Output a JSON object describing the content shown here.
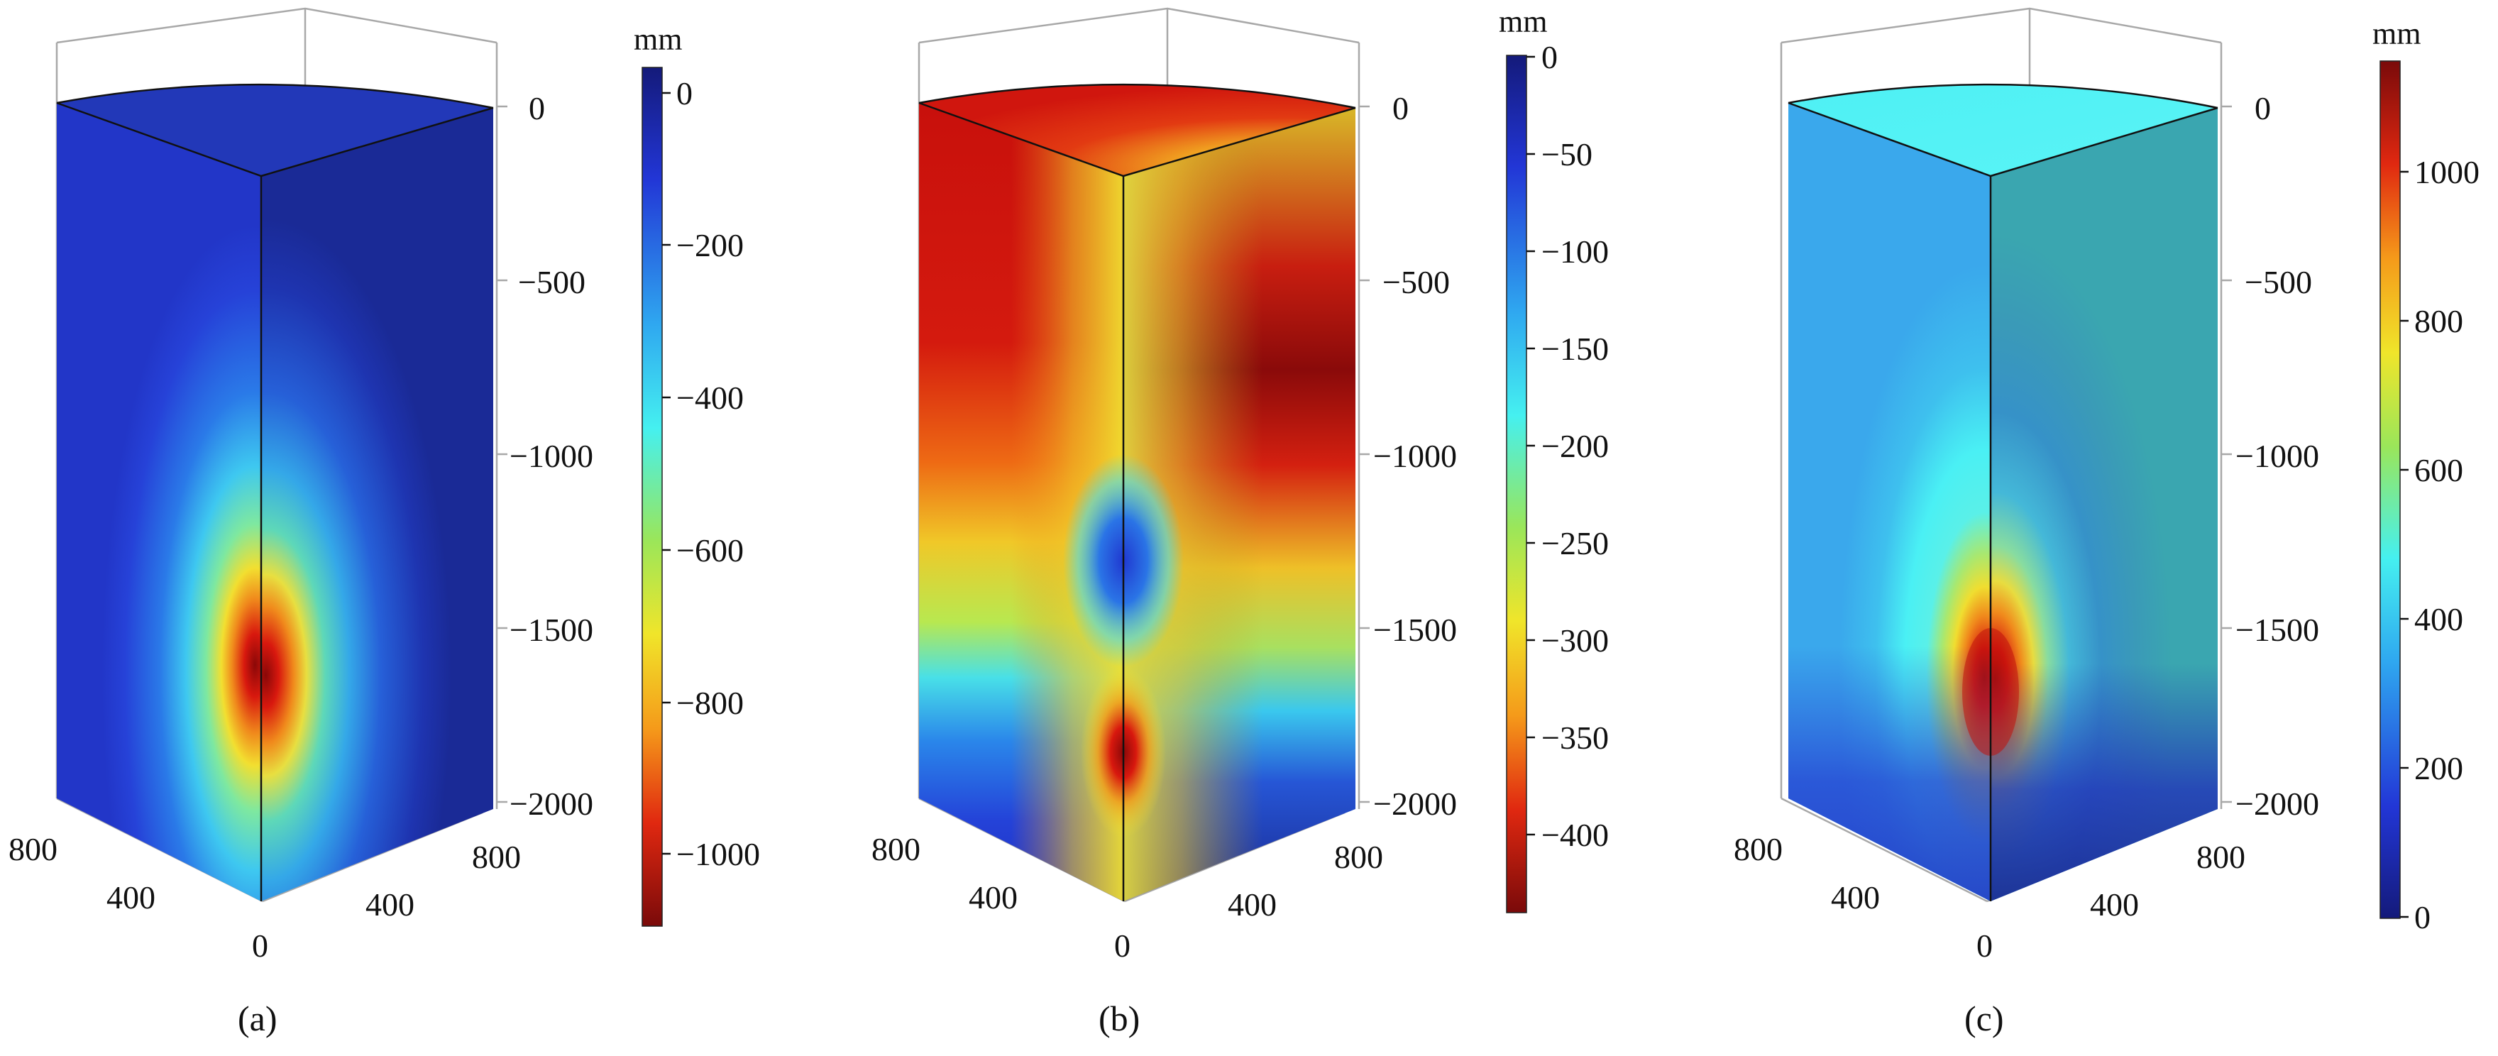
{
  "panels": [
    {
      "caption": "(a)",
      "colorbar": {
        "unit": "mm",
        "colormap": "jet-reversed",
        "range": [
          -1100,
          30
        ],
        "ticks": [
          "0",
          "−200",
          "−400",
          "−600",
          "−800",
          "−1000"
        ],
        "tick_values": [
          0,
          -200,
          -400,
          -600,
          -800,
          -1000
        ]
      },
      "z_axis_ticks": [
        "0",
        "−500",
        "−1000",
        "−1500",
        "−2000"
      ],
      "z_axis_values": [
        0,
        -500,
        -1000,
        -1500,
        -2000
      ],
      "left_axis_ticks": [
        "800",
        "400",
        "0"
      ],
      "right_axis_ticks": [
        "400",
        "800"
      ]
    },
    {
      "caption": "(b)",
      "colorbar": {
        "unit": "mm",
        "colormap": "jet-reversed",
        "range": [
          -440,
          0
        ],
        "ticks": [
          "0",
          "−50",
          "−100",
          "−150",
          "−200",
          "−250",
          "−300",
          "−350",
          "−400"
        ],
        "tick_values": [
          0,
          -50,
          -100,
          -150,
          -200,
          -250,
          -300,
          -350,
          -400
        ]
      },
      "z_axis_ticks": [
        "0",
        "−500",
        "−1000",
        "−1500",
        "−2000"
      ],
      "z_axis_values": [
        0,
        -500,
        -1000,
        -1500,
        -2000
      ],
      "left_axis_ticks": [
        "800",
        "400",
        "0"
      ],
      "right_axis_ticks": [
        "400",
        "800"
      ]
    },
    {
      "caption": "(c)",
      "colorbar": {
        "unit": "mm",
        "colormap": "jet",
        "range": [
          0,
          1150
        ],
        "ticks": [
          "0",
          "200",
          "400",
          "600",
          "800",
          "1000"
        ],
        "tick_values": [
          0,
          200,
          400,
          600,
          800,
          1000
        ]
      },
      "z_axis_ticks": [
        "0",
        "−500",
        "−1000",
        "−1500",
        "−2000"
      ],
      "z_axis_values": [
        0,
        -500,
        -1000,
        -1500,
        -2000
      ],
      "left_axis_ticks": [
        "800",
        "400",
        "0"
      ],
      "right_axis_ticks": [
        "400",
        "800"
      ]
    }
  ],
  "colors": {
    "jet_dark_blue": "#1a1f8c",
    "jet_blue": "#2a55e6",
    "jet_cyan": "#3ef0f5",
    "jet_green": "#8ee66a",
    "jet_yellow": "#f5e32a",
    "jet_orange": "#f08a1c",
    "jet_red": "#d8180e",
    "jet_dark_red": "#7a0a0a"
  }
}
